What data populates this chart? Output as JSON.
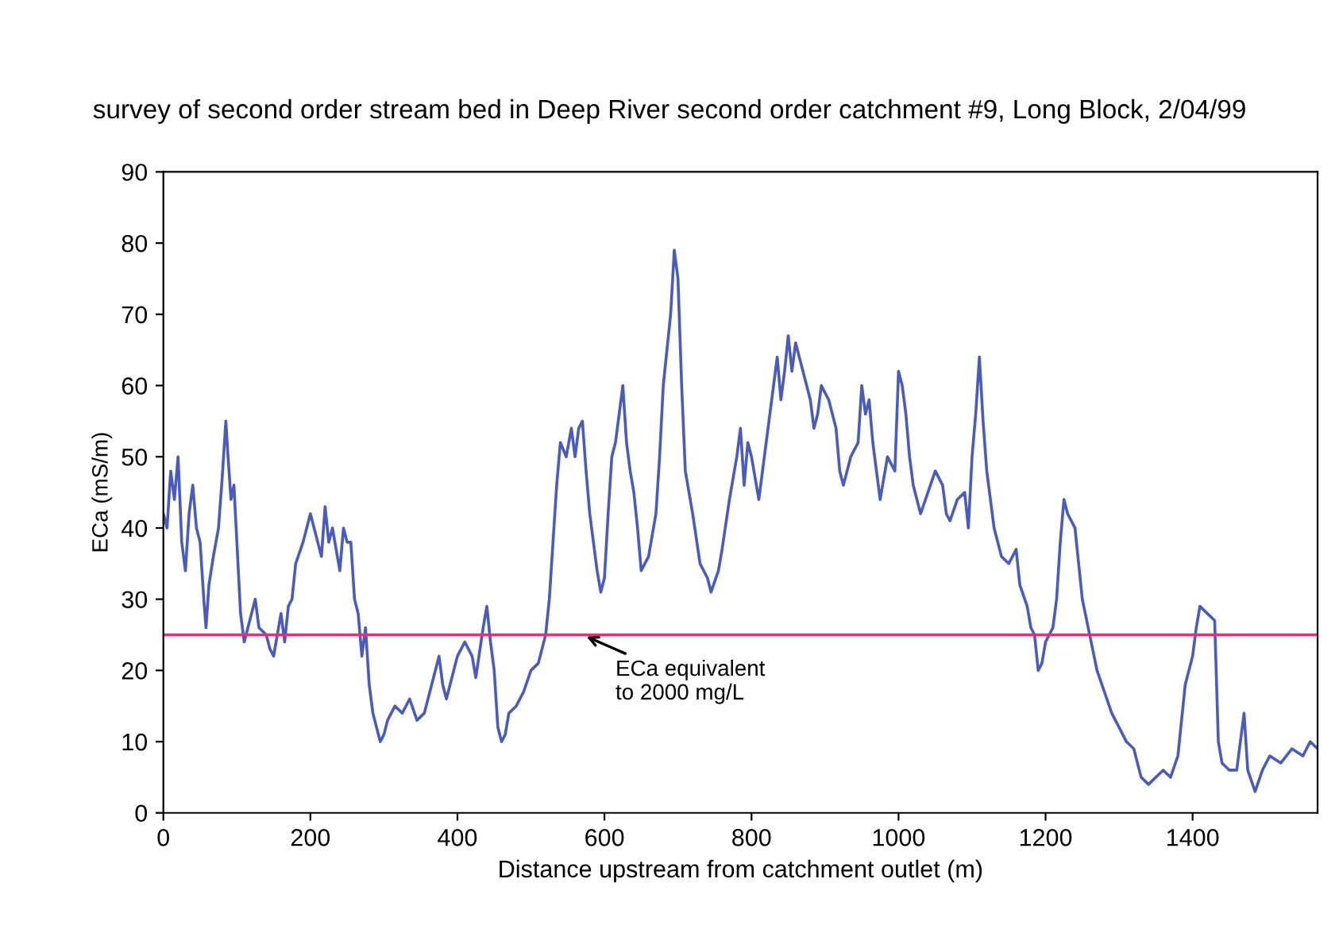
{
  "chart_data": {
    "type": "line",
    "title": "survey of second order stream bed in Deep River second order catchment #9, Long Block, 2/04/99",
    "xlabel": "Distance upstream from catchment outlet (m)",
    "ylabel": "ECa (mS/m)",
    "xlim": [
      0,
      1570
    ],
    "xticks": [
      0,
      200,
      400,
      600,
      800,
      1000,
      1200,
      1400
    ],
    "ylim": [
      0,
      90
    ],
    "yticks": [
      0,
      10,
      20,
      30,
      40,
      50,
      60,
      70,
      80,
      90
    ],
    "grid": false,
    "legend": false,
    "marker": "none",
    "line_style": "solid",
    "ref_lines": [
      {
        "axis": "y",
        "value": 25,
        "color": "#e0307a"
      }
    ],
    "annotations": [
      {
        "text": "ECa equivalent\nto 2000 mg/L",
        "x": 570,
        "y": 25
      }
    ],
    "series": [
      {
        "color": "#4a5bbf",
        "x": [
          0,
          5,
          10,
          15,
          20,
          25,
          30,
          35,
          40,
          45,
          50,
          55,
          58,
          62,
          68,
          75,
          80,
          85,
          88,
          92,
          96,
          100,
          105,
          110,
          115,
          125,
          130,
          140,
          145,
          150,
          160,
          165,
          170,
          175,
          180,
          190,
          200,
          210,
          215,
          220,
          225,
          230,
          240,
          245,
          250,
          255,
          260,
          265,
          270,
          275,
          280,
          285,
          290,
          295,
          300,
          305,
          315,
          325,
          335,
          345,
          355,
          365,
          375,
          380,
          385,
          395,
          400,
          410,
          420,
          425,
          435,
          440,
          445,
          450,
          455,
          460,
          465,
          470,
          480,
          490,
          500,
          510,
          520,
          525,
          530,
          535,
          540,
          548,
          555,
          560,
          565,
          570,
          575,
          580,
          590,
          595,
          600,
          605,
          610,
          615,
          620,
          625,
          630,
          635,
          640,
          645,
          650,
          660,
          670,
          675,
          680,
          690,
          695,
          700,
          705,
          710,
          720,
          730,
          740,
          745,
          755,
          760,
          770,
          780,
          785,
          790,
          795,
          800,
          810,
          820,
          830,
          835,
          840,
          845,
          850,
          855,
          860,
          870,
          880,
          885,
          890,
          895,
          905,
          915,
          920,
          925,
          935,
          945,
          950,
          955,
          960,
          965,
          970,
          975,
          985,
          995,
          1000,
          1005,
          1010,
          1015,
          1020,
          1030,
          1040,
          1050,
          1060,
          1065,
          1070,
          1080,
          1090,
          1095,
          1100,
          1105,
          1110,
          1115,
          1120,
          1130,
          1140,
          1150,
          1160,
          1165,
          1175,
          1180,
          1185,
          1190,
          1195,
          1200,
          1210,
          1215,
          1220,
          1225,
          1230,
          1240,
          1250,
          1260,
          1270,
          1280,
          1290,
          1300,
          1310,
          1320,
          1330,
          1340,
          1350,
          1360,
          1370,
          1380,
          1390,
          1400,
          1405,
          1410,
          1420,
          1430,
          1435,
          1440,
          1450,
          1460,
          1465,
          1470,
          1475,
          1485,
          1495,
          1505,
          1520,
          1535,
          1550,
          1560,
          1570
        ],
        "values": [
          42,
          40,
          48,
          44,
          50,
          38,
          34,
          42,
          46,
          40,
          38,
          30,
          26,
          32,
          36,
          40,
          47,
          55,
          50,
          44,
          46,
          38,
          28,
          24,
          26,
          30,
          26,
          25,
          23,
          22,
          28,
          24,
          29,
          30,
          35,
          38,
          42,
          38,
          36,
          43,
          38,
          40,
          34,
          40,
          38,
          38,
          30,
          28,
          22,
          26,
          18,
          14,
          12,
          10,
          11,
          13,
          15,
          14,
          16,
          13,
          14,
          18,
          22,
          18,
          16,
          20,
          22,
          24,
          22,
          19,
          26,
          29,
          24,
          20,
          12,
          10,
          11,
          14,
          15,
          17,
          20,
          21,
          25,
          30,
          38,
          46,
          52,
          50,
          54,
          50,
          54,
          55,
          48,
          42,
          34,
          31,
          33,
          42,
          50,
          52,
          56,
          60,
          52,
          48,
          45,
          40,
          34,
          36,
          42,
          50,
          60,
          70,
          79,
          75,
          60,
          48,
          42,
          35,
          33,
          31,
          34,
          37,
          44,
          50,
          54,
          46,
          52,
          50,
          44,
          52,
          60,
          64,
          58,
          62,
          67,
          62,
          66,
          62,
          58,
          54,
          56,
          60,
          58,
          54,
          48,
          46,
          50,
          52,
          60,
          56,
          58,
          52,
          48,
          44,
          50,
          48,
          62,
          60,
          56,
          50,
          46,
          42,
          45,
          48,
          46,
          42,
          41,
          44,
          45,
          40,
          50,
          56,
          64,
          55,
          48,
          40,
          36,
          35,
          37,
          32,
          29,
          26,
          25,
          20,
          21,
          24,
          26,
          30,
          38,
          44,
          42,
          40,
          30,
          25,
          20,
          17,
          14,
          12,
          10,
          9,
          5,
          4,
          5,
          6,
          5,
          8,
          18,
          22,
          26,
          29,
          28,
          27,
          10,
          7,
          6,
          6,
          10,
          14,
          6,
          3,
          6,
          8,
          7,
          9,
          8,
          10,
          9
        ]
      }
    ]
  }
}
